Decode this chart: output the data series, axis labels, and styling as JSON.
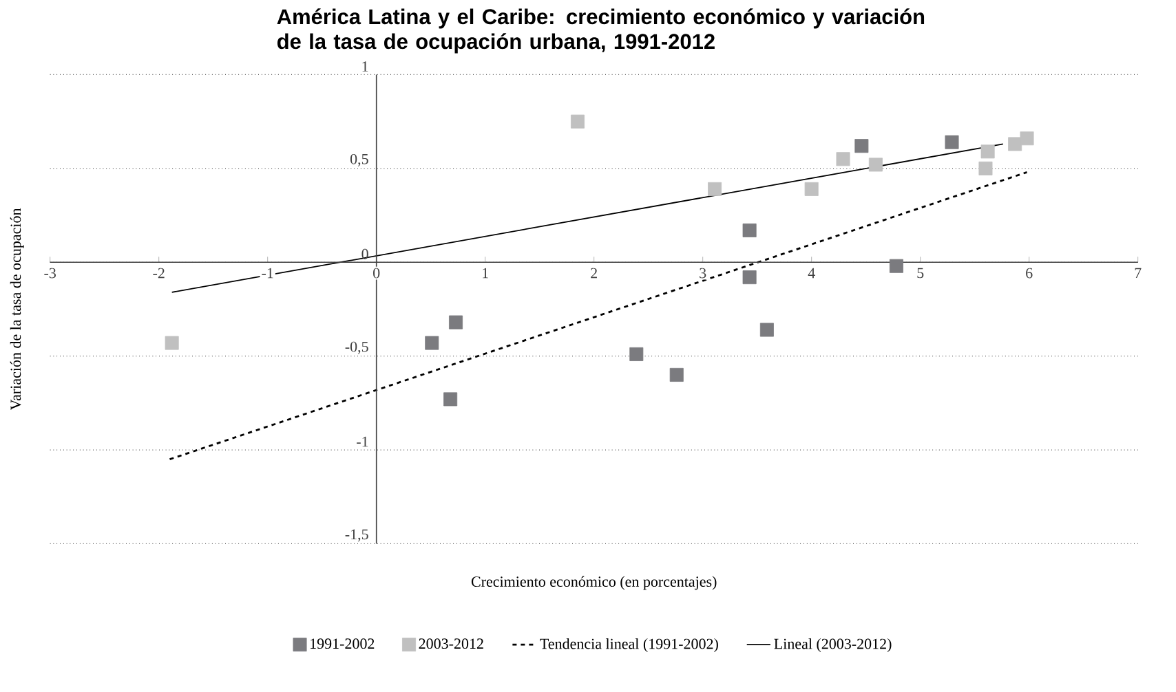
{
  "chart_data": {
    "type": "scatter",
    "title": "América Latina y el Caribe: crecimiento económico y variación de la tasa de ocupación urbana, 1991-2012",
    "xlabel": "Crecimiento económico (en porcentajes)",
    "ylabel": "Variación de la tasa de ocupación",
    "xlim": [
      -3,
      7
    ],
    "ylim": [
      -1.5,
      1
    ],
    "xticks": [
      -3,
      -2,
      -1,
      0,
      1,
      2,
      3,
      4,
      5,
      6,
      7
    ],
    "yticks": [
      {
        "value": -1.5,
        "label": "-1,5"
      },
      {
        "value": -1,
        "label": "-1"
      },
      {
        "value": -0.5,
        "label": "-0,5"
      },
      {
        "value": 0,
        "label": "0"
      },
      {
        "value": 0.5,
        "label": "0,5"
      },
      {
        "value": 1,
        "label": "1"
      }
    ],
    "grid": "y",
    "legend": "bottom",
    "marker": "square",
    "series": [
      {
        "name": "1991-2002",
        "color": "#7b7b7f",
        "x": [
          0.51,
          0.73,
          0.68,
          2.39,
          2.76,
          3.43,
          3.43,
          3.59,
          4.46,
          4.78,
          5.29
        ],
        "values": [
          -0.43,
          -0.32,
          -0.73,
          -0.49,
          -0.6,
          0.17,
          -0.08,
          -0.36,
          0.62,
          -0.02,
          0.64
        ]
      },
      {
        "name": "2003-2012",
        "color": "#c0c0c0",
        "x": [
          -1.88,
          1.85,
          3.11,
          4.0,
          4.29,
          4.59,
          5.6,
          5.62,
          5.87,
          5.98
        ],
        "values": [
          -0.43,
          0.75,
          0.39,
          0.39,
          0.55,
          0.52,
          0.5,
          0.59,
          0.63,
          0.66
        ]
      },
      {
        "name": "Tendencia lineal (1991-2002)",
        "type": "line",
        "color": "#000000",
        "line_style": "dashed",
        "marker": "none",
        "x": [
          -1.9,
          5.98
        ],
        "values": [
          -1.05,
          0.48
        ]
      },
      {
        "name": "Lineal (2003-2012)",
        "type": "line",
        "color": "#000000",
        "line_style": "solid",
        "marker": "none",
        "x": [
          -1.88,
          5.76
        ],
        "values": [
          -0.16,
          0.63
        ]
      }
    ]
  }
}
